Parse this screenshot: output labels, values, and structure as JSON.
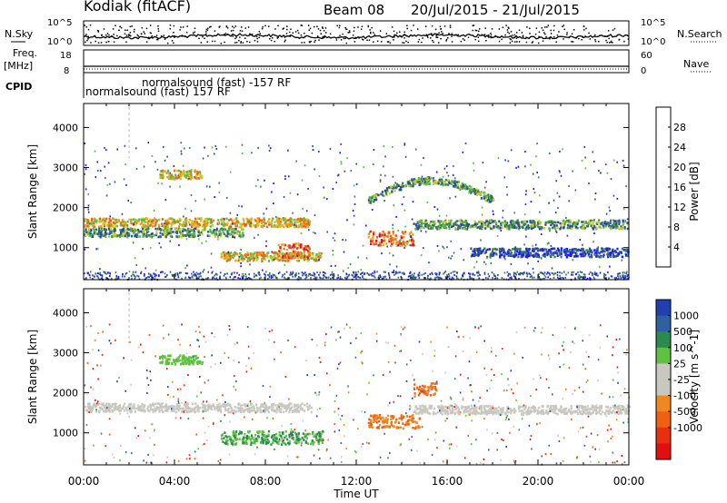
{
  "header": {
    "station": "Kodiak (fitACF)",
    "beam": "Beam 08",
    "date_range": "20/Jul/2015 - 21/Jul/2015"
  },
  "panels": {
    "nsky_label": "N.Sky",
    "nsearch_label": "N.Search",
    "nsky_ticks": [
      "10^5",
      "10^0"
    ],
    "nsearch_ticks": [
      "10^5",
      "10^0"
    ],
    "freq_label": "Freq.",
    "freq_unit": "[MHz]",
    "freq_ticks": [
      "18",
      "8"
    ],
    "nave_label": "Nave",
    "nave_ticks": [
      "60",
      "0"
    ],
    "cpid_label": "CPID",
    "cpid_line1": "normalsound (fast) -157 RF",
    "cpid_line2": "normalsound (fast) 157 RF"
  },
  "colors": {
    "power": [
      "#1a1aff",
      "#2a4a9a",
      "#3a7a5a",
      "#58b848",
      "#c8cc28",
      "#f0a020",
      "#f06010",
      "#e01818"
    ],
    "velocity": [
      "#2040b0",
      "#3060a0",
      "#2a8a50",
      "#60c040",
      "#c8c8c0",
      "#c8c8c0",
      "#f08820",
      "#f06010",
      "#e83010",
      "#e01010"
    ]
  },
  "chart_data": [
    {
      "type": "heatmap",
      "name": "power",
      "xlabel": "",
      "ylabel": "Slant Range [km]",
      "x_ticks": [
        "00:00",
        "04:00",
        "08:00",
        "12:00",
        "16:00",
        "20:00",
        "00:00"
      ],
      "xlim_hours": [
        0,
        24
      ],
      "y_ticks": [
        1000,
        2000,
        3000,
        4000
      ],
      "ylim": [
        200,
        4600
      ],
      "colorbar": {
        "label": "Power [dB]",
        "ticks": [
          4,
          8,
          12,
          16,
          20,
          24,
          28
        ],
        "range": [
          0,
          32
        ]
      },
      "features": [
        {
          "t_start": 0,
          "t_end": 10,
          "range_km": 1650,
          "level": "strong",
          "shape": "band"
        },
        {
          "t_start": 0,
          "t_end": 7,
          "range_km": 1400,
          "level": "medium",
          "shape": "band"
        },
        {
          "t_start": 3.3,
          "t_end": 5.2,
          "range_km": 2850,
          "level": "strong",
          "shape": "band"
        },
        {
          "t_start": 6,
          "t_end": 10.5,
          "range_km": 800,
          "level": "strong",
          "shape": "band"
        },
        {
          "t_start": 8.5,
          "t_end": 10,
          "range_km": 950,
          "level": "very strong",
          "shape": "blob"
        },
        {
          "t_start": 12.5,
          "t_end": 14.5,
          "range_km": 1250,
          "level": "very strong",
          "shape": "blob"
        },
        {
          "t_start": 14.5,
          "t_end": 24,
          "range_km": 1600,
          "level": "medium",
          "shape": "band"
        },
        {
          "t_start": 12.5,
          "t_end": 18,
          "range_km": 2200,
          "level": "medium",
          "shape": "arc"
        },
        {
          "t_start": 17,
          "t_end": 24,
          "range_km": 900,
          "level": "weak",
          "shape": "band"
        }
      ]
    },
    {
      "type": "heatmap",
      "name": "velocity",
      "xlabel": "Time UT",
      "ylabel": "Slant Range [km]",
      "x_ticks": [
        "00:00",
        "04:00",
        "08:00",
        "12:00",
        "16:00",
        "20:00",
        "00:00"
      ],
      "xlim_hours": [
        0,
        24
      ],
      "y_ticks": [
        1000,
        2000,
        3000,
        4000
      ],
      "ylim": [
        200,
        4600
      ],
      "colorbar": {
        "label": "Velocity [m s^-1]",
        "ticks": [
          "1000",
          "500",
          "100",
          "25",
          "-25",
          "-100",
          "-500",
          "-1000"
        ]
      },
      "features": [
        {
          "t_start": 0,
          "t_end": 10,
          "range_km": 1650,
          "velocity": "low (grey)",
          "shape": "band"
        },
        {
          "t_start": 3.3,
          "t_end": 5.2,
          "range_km": 2850,
          "velocity": "positive (green)",
          "shape": "band"
        },
        {
          "t_start": 6,
          "t_end": 10.5,
          "range_km": 900,
          "velocity": "positive (green/teal)",
          "shape": "blob"
        },
        {
          "t_start": 12.5,
          "t_end": 14.8,
          "range_km": 1300,
          "velocity": "negative (orange)",
          "shape": "blob"
        },
        {
          "t_start": 14.5,
          "t_end": 24,
          "range_km": 1600,
          "velocity": "low (grey)",
          "shape": "band"
        },
        {
          "t_start": 14.5,
          "t_end": 15.5,
          "range_km": 2100,
          "velocity": "negative (orange)",
          "shape": "blob"
        }
      ]
    }
  ]
}
